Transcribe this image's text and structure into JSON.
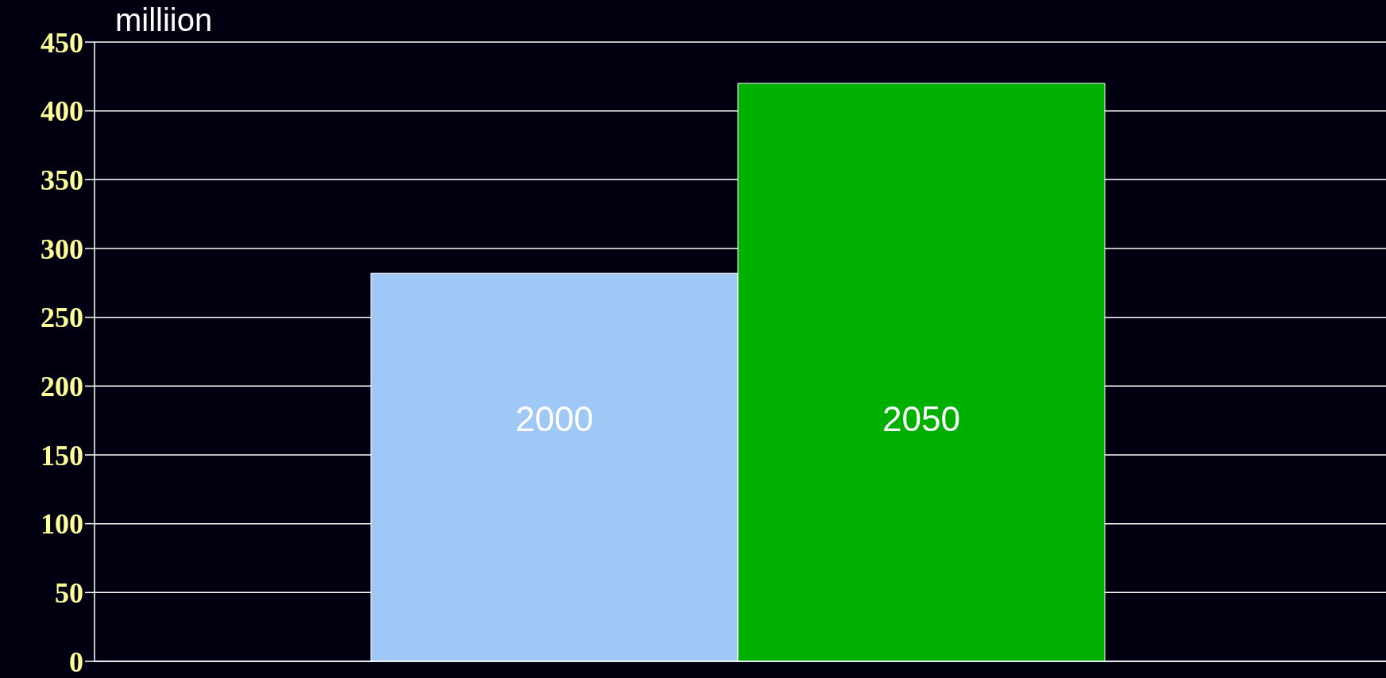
{
  "chart_data": {
    "type": "bar",
    "ylabel": "milliion",
    "categories": [
      "2000",
      "2050"
    ],
    "values": [
      282,
      420
    ],
    "colors": [
      "#a0c8f6",
      "#00b000"
    ],
    "ylim": [
      0,
      450
    ],
    "yticks": [
      0,
      50,
      100,
      150,
      200,
      250,
      300,
      350,
      400,
      450
    ],
    "grid": "y",
    "tick_labels": "y"
  }
}
